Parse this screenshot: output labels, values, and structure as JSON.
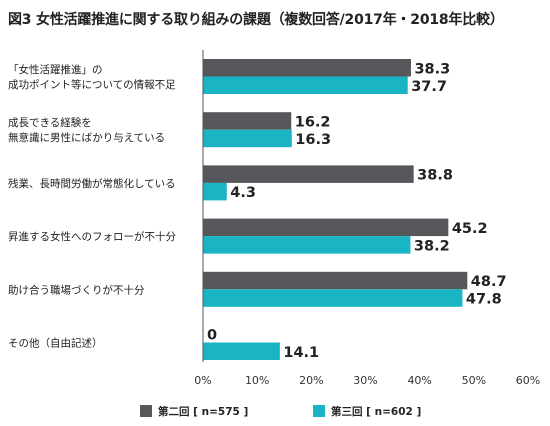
{
  "colors": {
    "series1": "#55575a",
    "series2": "#1ab5c4",
    "axis": "#555555"
  },
  "chart_data": {
    "type": "bar",
    "orientation": "horizontal",
    "title": "図3 女性活躍推進に関する取り組みの課題（複数回答/2017年・2018年比較）",
    "categories": [
      [
        "「女性活躍推進」の",
        "成功ポイント等についての情報不足"
      ],
      [
        "成長できる経験を",
        "無意識に男性にばかり与えている"
      ],
      [
        "残業、長時間労働が常態化している"
      ],
      [
        "昇進する女性へのフォローが不十分"
      ],
      [
        "助け合う職場づくりが不十分"
      ],
      [
        "その他（自由記述）"
      ]
    ],
    "series": [
      {
        "name": "第二回 [ n=575 ]",
        "values": [
          38.3,
          16.2,
          38.8,
          45.2,
          48.7,
          0
        ]
      },
      {
        "name": "第三回 [ n=602 ]",
        "values": [
          37.7,
          16.3,
          4.3,
          38.2,
          47.8,
          14.1
        ]
      }
    ],
    "value_labels": [
      [
        "38.3",
        "16.2",
        "38.8",
        "45.2",
        "48.7",
        "0"
      ],
      [
        "37.7",
        "16.3",
        "4.3",
        "38.2",
        "47.8",
        "14.1"
      ]
    ],
    "xlim": [
      0,
      60
    ],
    "xticks": [
      0,
      10,
      20,
      30,
      40,
      50,
      60
    ],
    "xtick_labels": [
      "0%",
      "10%",
      "20%",
      "30%",
      "40%",
      "50%",
      "60%"
    ],
    "grid": false,
    "legend_position": "bottom"
  }
}
